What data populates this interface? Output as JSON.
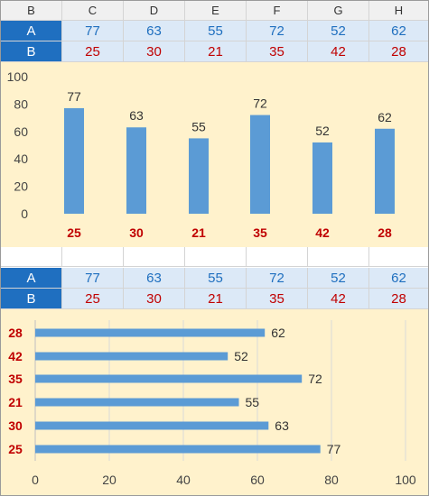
{
  "header": {
    "row_label": "B",
    "columns": [
      "C",
      "D",
      "E",
      "F",
      "G",
      "H"
    ]
  },
  "table1": {
    "row_a": {
      "label": "A",
      "values": [
        77,
        63,
        55,
        72,
        52,
        62
      ]
    },
    "row_b": {
      "label": "B",
      "values": [
        25,
        30,
        21,
        35,
        42,
        28
      ]
    }
  },
  "table2": {
    "row_a": {
      "label": "A",
      "values": [
        77,
        63,
        55,
        72,
        52,
        62
      ]
    },
    "row_b": {
      "label": "B",
      "values": [
        25,
        30,
        21,
        35,
        42,
        28
      ]
    }
  },
  "colors": {
    "bar": "#5b9bd5",
    "category": "#c00000",
    "chart_bg": "#fff2cc",
    "row_label_bg": "#1f6fc0"
  },
  "chart_data": [
    {
      "type": "bar",
      "orientation": "vertical",
      "categories": [
        "25",
        "30",
        "21",
        "35",
        "42",
        "28"
      ],
      "values": [
        77,
        63,
        55,
        72,
        52,
        62
      ],
      "ylim": [
        0,
        100
      ],
      "yticks": [
        "0",
        "20",
        "40",
        "60",
        "80",
        "100"
      ],
      "grid": false,
      "data_labels": true
    },
    {
      "type": "bar",
      "orientation": "horizontal",
      "categories": [
        "28",
        "42",
        "35",
        "21",
        "30",
        "25"
      ],
      "values": [
        62,
        52,
        72,
        55,
        63,
        77
      ],
      "xlim": [
        0,
        100
      ],
      "xticks": [
        "0",
        "20",
        "40",
        "60",
        "80",
        "100"
      ],
      "grid": true,
      "data_labels": true
    }
  ]
}
